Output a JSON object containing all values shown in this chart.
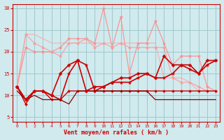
{
  "bg_color": "#d0eaee",
  "grid_color": "#a0c8cc",
  "text_color": "#cc0000",
  "xlabel": "Vent moyen/en rafales ( km/h )",
  "xlim": [
    -0.5,
    23.5
  ],
  "ylim": [
    4,
    31
  ],
  "yticks": [
    5,
    10,
    15,
    20,
    25,
    30
  ],
  "xticks": [
    0,
    1,
    2,
    3,
    4,
    5,
    6,
    7,
    8,
    9,
    10,
    11,
    12,
    13,
    14,
    15,
    16,
    17,
    18,
    19,
    20,
    21,
    22,
    23
  ],
  "series": [
    {
      "x": [
        0,
        1,
        2,
        3,
        4,
        5,
        6,
        7,
        8,
        9,
        10,
        11,
        12,
        13,
        14,
        15,
        16,
        17,
        18,
        19,
        20,
        21,
        22,
        23
      ],
      "y": [
        12,
        24,
        24,
        23,
        22,
        22,
        22,
        22,
        22,
        22,
        22,
        22,
        22,
        22,
        22,
        22,
        22,
        14,
        14,
        14,
        13,
        11,
        11,
        11
      ],
      "color": "#ffaaaa",
      "lw": 0.9,
      "marker": null,
      "ms": 0,
      "alpha": 0.85
    },
    {
      "x": [
        0,
        1,
        2,
        3,
        4,
        5,
        6,
        7,
        8,
        9,
        10,
        11,
        12,
        13,
        14,
        15,
        16,
        17,
        18,
        19,
        20,
        21,
        22,
        23
      ],
      "y": [
        12,
        21,
        20,
        20,
        20,
        21,
        23,
        23,
        23,
        22,
        30,
        21,
        28,
        15,
        22,
        22,
        27,
        22,
        17,
        19,
        19,
        19,
        12,
        11
      ],
      "color": "#ff8888",
      "lw": 0.9,
      "marker": "*",
      "ms": 3.5,
      "alpha": 0.85
    },
    {
      "x": [
        0,
        1,
        2,
        3,
        4,
        5,
        6,
        7,
        8,
        9,
        10,
        11,
        12,
        13,
        14,
        15,
        16,
        17,
        18,
        19,
        20,
        21,
        22,
        23
      ],
      "y": [
        12,
        24,
        22,
        21,
        20,
        19,
        22,
        22,
        23,
        21,
        22,
        21,
        22,
        21,
        21,
        21,
        21,
        21,
        14,
        13,
        13,
        12,
        11,
        11
      ],
      "color": "#ff9999",
      "lw": 0.9,
      "marker": "o",
      "ms": 2.5,
      "alpha": 0.85
    },
    {
      "x": [
        0,
        1,
        2,
        3,
        4,
        5,
        6,
        7,
        8,
        9,
        10,
        11,
        12,
        13,
        14,
        15,
        16,
        17,
        18,
        19,
        20,
        21,
        22,
        23
      ],
      "y": [
        12,
        8,
        11,
        11,
        9,
        9,
        11,
        11,
        11,
        11,
        11,
        11,
        11,
        11,
        11,
        11,
        11,
        11,
        11,
        11,
        11,
        11,
        11,
        11
      ],
      "color": "#cc0000",
      "lw": 1.0,
      "marker": "D",
      "ms": 2,
      "alpha": 1.0
    },
    {
      "x": [
        0,
        1,
        2,
        3,
        4,
        5,
        6,
        7,
        8,
        9,
        10,
        11,
        12,
        13,
        14,
        15,
        16,
        17,
        18,
        19,
        20,
        21,
        22,
        23
      ],
      "y": [
        12,
        9,
        11,
        11,
        10,
        9,
        15,
        18,
        17,
        11,
        12,
        13,
        13,
        13,
        14,
        15,
        14,
        14,
        15,
        17,
        16,
        15,
        17,
        18
      ],
      "color": "#cc0000",
      "lw": 1.2,
      "marker": "*",
      "ms": 3.5,
      "alpha": 1.0
    },
    {
      "x": [
        0,
        1,
        2,
        3,
        4,
        5,
        6,
        7,
        8,
        9,
        10,
        11,
        12,
        13,
        14,
        15,
        16,
        17,
        18,
        19,
        20,
        21,
        22,
        23
      ],
      "y": [
        11,
        9,
        10,
        9,
        9,
        9,
        8,
        11,
        11,
        11,
        11,
        11,
        11,
        11,
        11,
        11,
        9,
        9,
        9,
        9,
        9,
        9,
        9,
        9
      ],
      "color": "#880000",
      "lw": 0.9,
      "marker": null,
      "ms": 0,
      "alpha": 1.0
    },
    {
      "x": [
        0,
        1,
        2,
        3,
        4,
        5,
        6,
        7,
        8,
        9,
        10,
        11,
        12,
        13,
        14,
        15,
        16,
        17,
        18,
        19,
        20,
        21,
        22,
        23
      ],
      "y": [
        12,
        9,
        11,
        11,
        10,
        15,
        17,
        18,
        11,
        12,
        12,
        13,
        14,
        14,
        15,
        15,
        14,
        19,
        17,
        17,
        17,
        15,
        18,
        18
      ],
      "color": "#cc0000",
      "lw": 1.2,
      "marker": "D",
      "ms": 2.5,
      "alpha": 1.0
    }
  ]
}
